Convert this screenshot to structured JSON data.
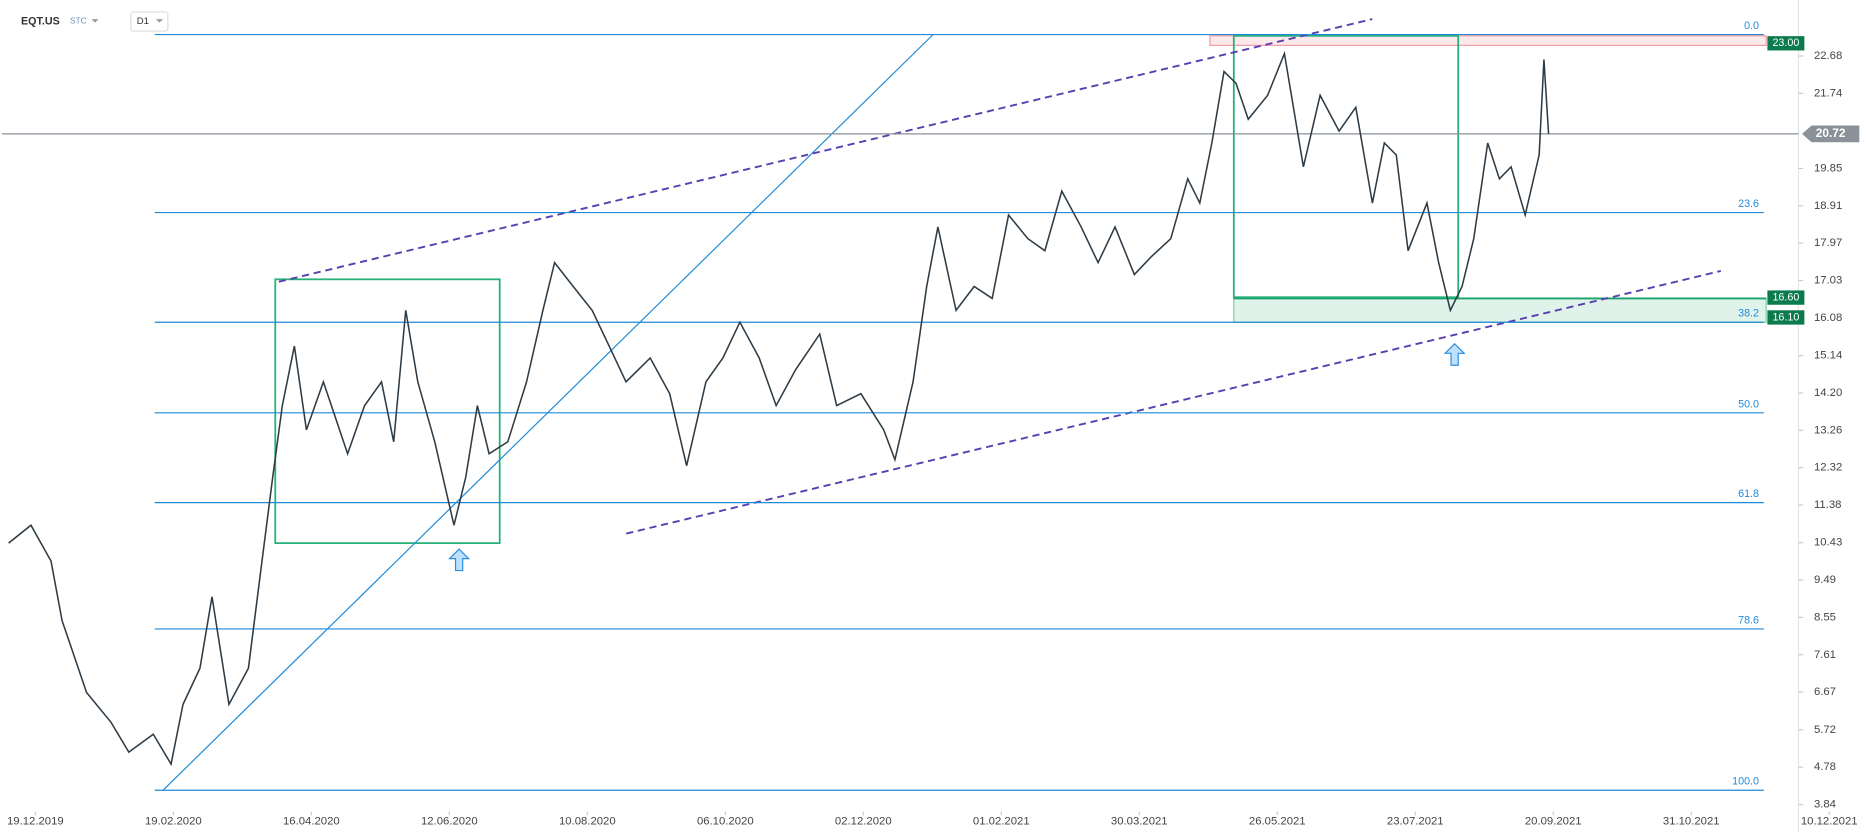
{
  "header": {
    "symbol": "EQT.US",
    "source": "STC",
    "interval": "D1"
  },
  "chart_data": {
    "type": "line",
    "x": [
      "07.12.2019",
      "17.12.2019",
      "26.12.2019",
      "31.12.2019",
      "11.01.2020",
      "22.01.2020",
      "30.01.2020",
      "10.02.2020",
      "18.02.2020",
      "23.02.2020",
      "01.03.2020",
      "06.03.2020",
      "13.03.2020",
      "21.03.2020",
      "26.03.2020",
      "31.03.2020",
      "04.04.2020",
      "09.04.2020",
      "14.04.2020",
      "21.04.2020",
      "01.05.2020",
      "08.05.2020",
      "15.05.2020",
      "20.05.2020",
      "25.05.2020",
      "30.05.2020",
      "06.06.2020",
      "14.06.2020",
      "19.06.2020",
      "24.06.2020",
      "29.06.2020",
      "07.07.2020",
      "15.07.2020",
      "22.07.2020",
      "27.07.2020",
      "04.08.2020",
      "12.08.2020",
      "19.08.2020",
      "26.08.2020",
      "05.09.2020",
      "13.09.2020",
      "20.09.2020",
      "28.09.2020",
      "05.10.2020",
      "12.10.2020",
      "20.10.2020",
      "27.10.2020",
      "04.11.2020",
      "14.11.2020",
      "21.11.2020",
      "01.12.2020",
      "11.12.2020",
      "16.12.2020",
      "24.12.2020",
      "30.12.2020",
      "04.01.2021",
      "12.01.2021",
      "20.01.2021",
      "28.01.2021",
      "04.02.2021",
      "12.02.2021",
      "19.02.2021",
      "26.02.2021",
      "06.03.2021",
      "13.03.2021",
      "20.03.2021",
      "28.03.2021",
      "04.04.2021",
      "12.04.2021",
      "19.04.2021",
      "24.04.2021",
      "29.04.2021",
      "04.05.2021",
      "09.05.2021",
      "14.05.2021",
      "22.05.2021",
      "29.05.2021",
      "06.06.2021",
      "13.06.2021",
      "21.06.2021",
      "28.06.2021",
      "05.07.2021",
      "10.07.2021",
      "15.07.2021",
      "20.07.2021",
      "28.07.2021",
      "02.08.2021",
      "07.08.2021",
      "12.08.2021",
      "17.08.2021",
      "23.08.2021",
      "28.08.2021",
      "02.09.2021",
      "08.09.2021",
      "14.09.2021",
      "16.09.2021",
      "18.09.2021"
    ],
    "series": [
      {
        "name": "EQT.US",
        "color": "#2f3c46",
        "values": [
          10.42,
          10.87,
          9.97,
          8.47,
          6.66,
          5.91,
          5.16,
          5.61,
          4.86,
          6.36,
          7.27,
          9.07,
          6.36,
          7.27,
          9.67,
          12.07,
          13.88,
          15.38,
          13.27,
          14.48,
          12.67,
          13.88,
          14.48,
          12.97,
          16.28,
          14.48,
          12.97,
          10.87,
          12.07,
          13.88,
          12.67,
          12.97,
          14.48,
          16.28,
          17.48,
          16.88,
          16.28,
          15.38,
          14.48,
          15.08,
          14.18,
          12.37,
          14.48,
          15.08,
          15.98,
          15.08,
          13.88,
          14.78,
          15.68,
          13.88,
          14.18,
          13.27,
          12.52,
          14.48,
          16.88,
          18.38,
          16.28,
          16.88,
          16.58,
          18.68,
          18.08,
          17.78,
          19.28,
          18.38,
          17.48,
          18.38,
          17.18,
          17.63,
          18.08,
          19.59,
          18.98,
          20.49,
          22.29,
          21.99,
          21.09,
          21.69,
          22.74,
          19.89,
          21.69,
          20.79,
          21.39,
          18.98,
          20.49,
          20.19,
          17.78,
          18.98,
          17.48,
          16.28,
          16.88,
          18.08,
          20.49,
          19.59,
          19.89,
          18.68,
          20.19,
          22.59,
          20.72
        ]
      }
    ],
    "xticks": [
      "19.12.2019",
      "19.02.2020",
      "16.04.2020",
      "12.06.2020",
      "10.08.2020",
      "06.10.2020",
      "02.12.2020",
      "01.02.2021",
      "30.03.2021",
      "26.05.2021",
      "23.07.2021",
      "20.09.2021",
      "31.10.2021",
      "10.12.2021"
    ],
    "ylim": [
      3.78,
      23.94
    ],
    "yticks": [
      3.84,
      4.78,
      5.72,
      6.67,
      7.61,
      8.55,
      9.49,
      10.43,
      11.38,
      12.32,
      13.26,
      {
        "value": 14.2,
        "label": "14.20"
      },
      15.14,
      16.08,
      17.03,
      17.97,
      18.91,
      19.85,
      21.74,
      22.68
    ],
    "fib_levels": [
      {
        "label": "0.0",
        "price": 23.22
      },
      {
        "label": "23.6",
        "price": 18.74
      },
      {
        "label": "38.2",
        "price": 15.98
      },
      {
        "label": "50.0",
        "price": 13.7
      },
      {
        "label": "61.8",
        "price": 11.44
      },
      {
        "label": "78.6",
        "price": 8.26
      },
      {
        "label": "100.0",
        "price": 4.2
      }
    ],
    "fib_color": "#1f8ad8",
    "price_tags": [
      {
        "value": 23.0,
        "label": "23.00",
        "color": "#0b7a4c"
      },
      {
        "value": 16.6,
        "label": "16.60",
        "color": "#0b7a4c"
      },
      {
        "value": 16.1,
        "label": "16.10",
        "color": "#0b7a4c"
      }
    ],
    "last_price": {
      "value": 20.72,
      "label": "20.72",
      "color": "#8a9198"
    }
  }
}
